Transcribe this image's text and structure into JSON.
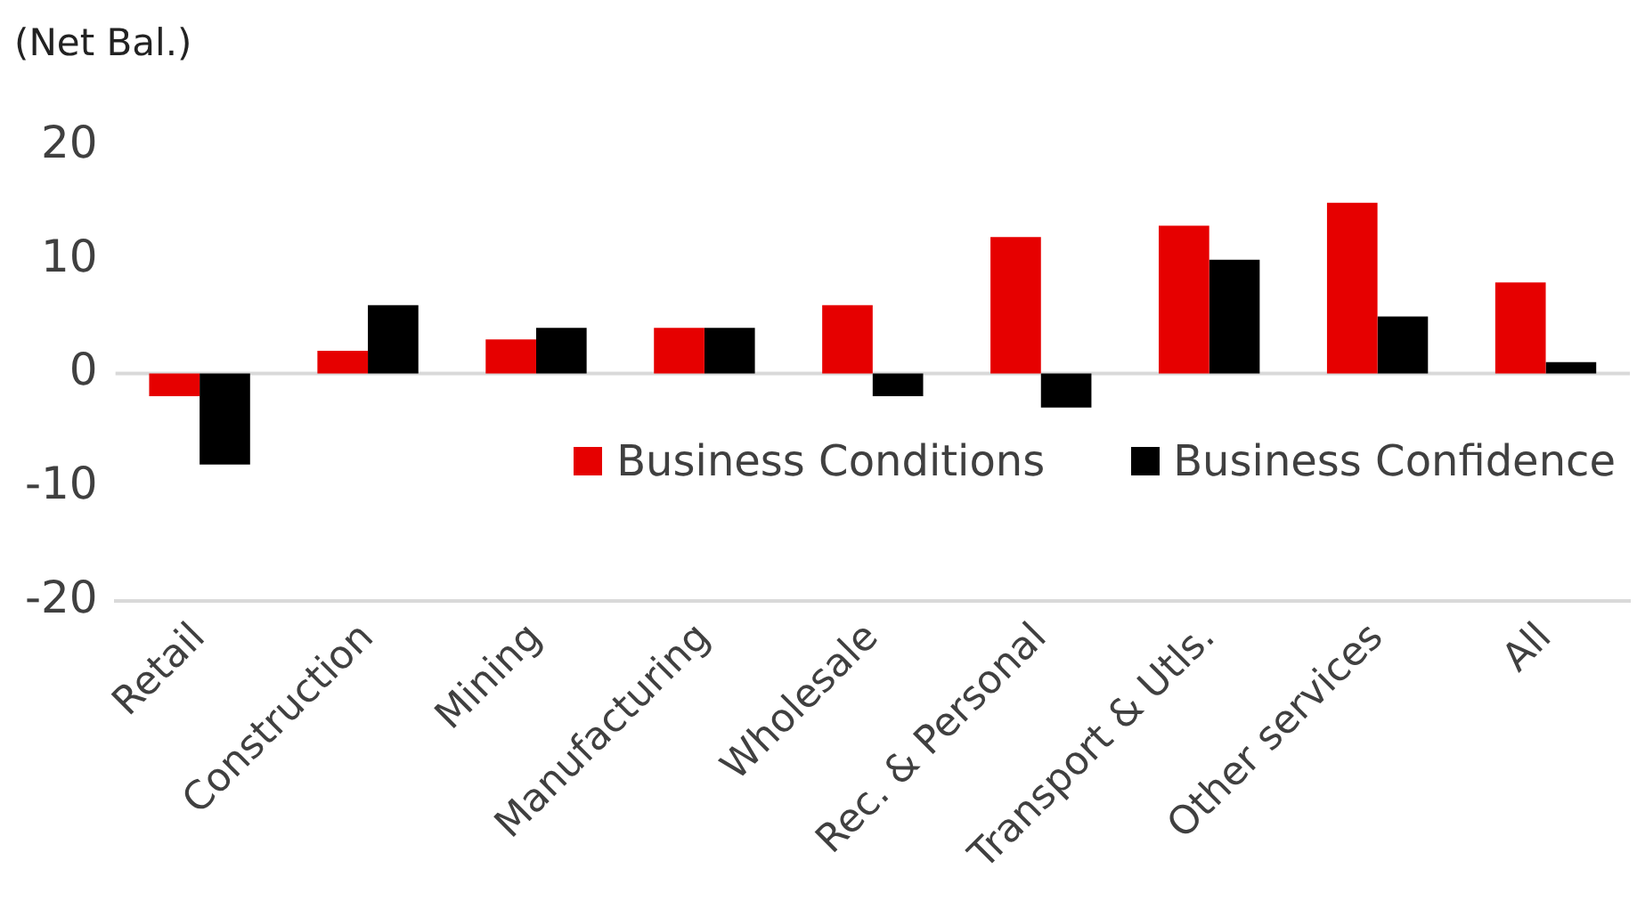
{
  "chart_data": {
    "type": "bar",
    "ylabel": "(Net Bal.)",
    "categories": [
      "Retail",
      "Construction",
      "Mining",
      "Manufacturing",
      "Wholesale",
      "Rec. & Personal",
      "Transport & Utls.",
      "Other services",
      "All"
    ],
    "series": [
      {
        "name": "Business Conditions",
        "color": "#e60000",
        "values": [
          -2,
          2,
          3,
          4,
          6,
          12,
          13,
          15,
          8
        ]
      },
      {
        "name": "Business Confidence",
        "color": "#000000",
        "values": [
          -8,
          6,
          4,
          4,
          -2,
          -3,
          10,
          5,
          1
        ]
      }
    ],
    "ylim": [
      -20,
      20
    ],
    "yticks": [
      -20,
      -10,
      0,
      10,
      20
    ],
    "grid": false,
    "legend": "right",
    "ref_lines": [
      {
        "axis": "y",
        "value": 0,
        "color": "#d9d9d9"
      }
    ]
  }
}
